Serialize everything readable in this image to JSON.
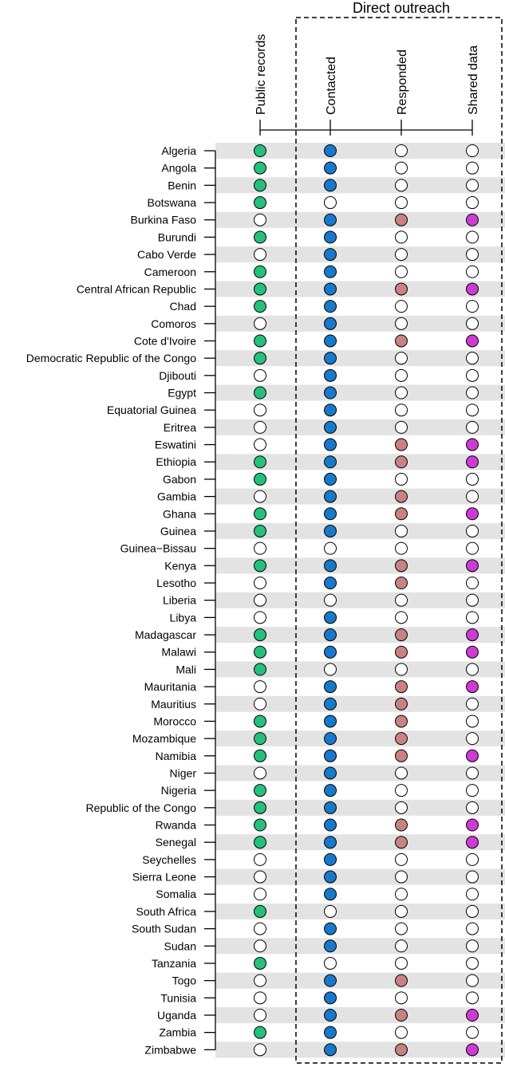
{
  "chart_data": {
    "type": "dot-matrix",
    "group_title": "Direct outreach",
    "columns": [
      {
        "key": "public_records",
        "label": "Public records",
        "color": "#27c07a"
      },
      {
        "key": "contacted",
        "label": "Contacted",
        "color": "#1a78c8"
      },
      {
        "key": "responded",
        "label": "Responded",
        "color": "#c98282"
      },
      {
        "key": "shared_data",
        "label": "Shared data",
        "color": "#cc3cd3"
      }
    ],
    "empty_color": "#ffffff",
    "row_stripe_color": "#e3e3e3",
    "countries": [
      {
        "name": "Algeria",
        "values": [
          1,
          1,
          0,
          0
        ]
      },
      {
        "name": "Angola",
        "values": [
          1,
          1,
          0,
          0
        ]
      },
      {
        "name": "Benin",
        "values": [
          1,
          1,
          0,
          0
        ]
      },
      {
        "name": "Botswana",
        "values": [
          1,
          0,
          0,
          0
        ]
      },
      {
        "name": "Burkina Faso",
        "values": [
          0,
          1,
          1,
          1
        ]
      },
      {
        "name": "Burundi",
        "values": [
          1,
          1,
          0,
          0
        ]
      },
      {
        "name": "Cabo Verde",
        "values": [
          0,
          1,
          0,
          0
        ]
      },
      {
        "name": "Cameroon",
        "values": [
          1,
          1,
          0,
          0
        ]
      },
      {
        "name": "Central African Republic",
        "values": [
          1,
          1,
          1,
          1
        ]
      },
      {
        "name": "Chad",
        "values": [
          1,
          1,
          0,
          0
        ]
      },
      {
        "name": "Comoros",
        "values": [
          0,
          1,
          0,
          0
        ]
      },
      {
        "name": "Cote d'Ivoire",
        "values": [
          1,
          1,
          1,
          1
        ]
      },
      {
        "name": "Democratic Republic of the Congo",
        "values": [
          1,
          1,
          0,
          0
        ]
      },
      {
        "name": "Djibouti",
        "values": [
          0,
          1,
          0,
          0
        ]
      },
      {
        "name": "Egypt",
        "values": [
          1,
          1,
          0,
          0
        ]
      },
      {
        "name": "Equatorial Guinea",
        "values": [
          0,
          1,
          0,
          0
        ]
      },
      {
        "name": "Eritrea",
        "values": [
          0,
          1,
          0,
          0
        ]
      },
      {
        "name": "Eswatini",
        "values": [
          0,
          1,
          1,
          1
        ]
      },
      {
        "name": "Ethiopia",
        "values": [
          1,
          1,
          1,
          1
        ]
      },
      {
        "name": "Gabon",
        "values": [
          1,
          1,
          0,
          0
        ]
      },
      {
        "name": "Gambia",
        "values": [
          0,
          1,
          1,
          0
        ]
      },
      {
        "name": "Ghana",
        "values": [
          1,
          1,
          1,
          1
        ]
      },
      {
        "name": "Guinea",
        "values": [
          1,
          1,
          0,
          0
        ]
      },
      {
        "name": "Guinea−Bissau",
        "values": [
          0,
          0,
          0,
          0
        ]
      },
      {
        "name": "Kenya",
        "values": [
          1,
          1,
          1,
          1
        ]
      },
      {
        "name": "Lesotho",
        "values": [
          0,
          1,
          1,
          0
        ]
      },
      {
        "name": "Liberia",
        "values": [
          0,
          0,
          0,
          0
        ]
      },
      {
        "name": "Libya",
        "values": [
          0,
          1,
          0,
          0
        ]
      },
      {
        "name": "Madagascar",
        "values": [
          1,
          1,
          1,
          1
        ]
      },
      {
        "name": "Malawi",
        "values": [
          1,
          1,
          1,
          1
        ]
      },
      {
        "name": "Mali",
        "values": [
          1,
          0,
          0,
          0
        ]
      },
      {
        "name": "Mauritania",
        "values": [
          0,
          1,
          1,
          1
        ]
      },
      {
        "name": "Mauritius",
        "values": [
          0,
          1,
          1,
          0
        ]
      },
      {
        "name": "Morocco",
        "values": [
          1,
          1,
          1,
          0
        ]
      },
      {
        "name": "Mozambique",
        "values": [
          1,
          1,
          1,
          0
        ]
      },
      {
        "name": "Namibia",
        "values": [
          1,
          1,
          1,
          1
        ]
      },
      {
        "name": "Niger",
        "values": [
          0,
          1,
          0,
          0
        ]
      },
      {
        "name": "Nigeria",
        "values": [
          1,
          1,
          0,
          0
        ]
      },
      {
        "name": "Republic of the Congo",
        "values": [
          1,
          1,
          0,
          0
        ]
      },
      {
        "name": "Rwanda",
        "values": [
          1,
          1,
          1,
          1
        ]
      },
      {
        "name": "Senegal",
        "values": [
          1,
          1,
          1,
          1
        ]
      },
      {
        "name": "Seychelles",
        "values": [
          0,
          1,
          0,
          0
        ]
      },
      {
        "name": "Sierra Leone",
        "values": [
          0,
          1,
          0,
          0
        ]
      },
      {
        "name": "Somalia",
        "values": [
          0,
          1,
          0,
          0
        ]
      },
      {
        "name": "South Africa",
        "values": [
          1,
          0,
          0,
          0
        ]
      },
      {
        "name": "South Sudan",
        "values": [
          0,
          1,
          0,
          0
        ]
      },
      {
        "name": "Sudan",
        "values": [
          0,
          1,
          0,
          0
        ]
      },
      {
        "name": "Tanzania",
        "values": [
          1,
          0,
          0,
          0
        ]
      },
      {
        "name": "Togo",
        "values": [
          0,
          1,
          1,
          0
        ]
      },
      {
        "name": "Tunisia",
        "values": [
          0,
          1,
          0,
          0
        ]
      },
      {
        "name": "Uganda",
        "values": [
          0,
          1,
          1,
          1
        ]
      },
      {
        "name": "Zambia",
        "values": [
          1,
          1,
          0,
          0
        ]
      },
      {
        "name": "Zimbabwe",
        "values": [
          0,
          1,
          1,
          1
        ]
      }
    ]
  }
}
